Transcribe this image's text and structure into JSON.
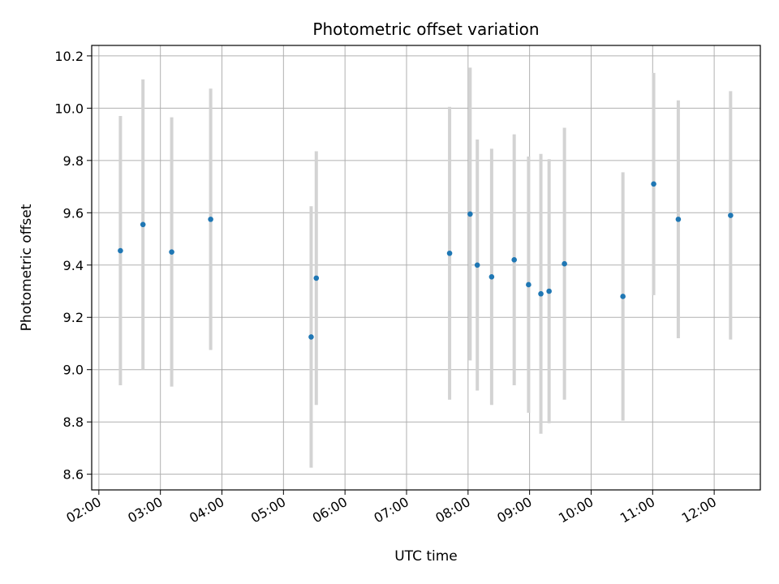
{
  "chart_data": {
    "type": "scatter",
    "title": "Photometric offset variation",
    "xlabel": "UTC time",
    "ylabel": "Photometric offset",
    "grid": true,
    "x_ticks": [
      "02:00",
      "03:00",
      "04:00",
      "05:00",
      "06:00",
      "07:00",
      "08:00",
      "09:00",
      "10:00",
      "11:00",
      "12:00"
    ],
    "y_ticks": [
      "8.6",
      "8.8",
      "9.0",
      "9.2",
      "9.4",
      "9.6",
      "9.8",
      "10.0",
      "10.2"
    ],
    "xlim": [
      "01:53",
      "12:45"
    ],
    "ylim": [
      8.54,
      10.24
    ],
    "point_color": "#1f77b4",
    "errorbar_color": "#d3d3d3",
    "points": [
      {
        "x": "02:21",
        "y": 9.455,
        "err": 0.515
      },
      {
        "x": "02:43",
        "y": 9.555,
        "err": 0.555
      },
      {
        "x": "03:11",
        "y": 9.45,
        "err": 0.515
      },
      {
        "x": "03:49",
        "y": 9.575,
        "err": 0.5
      },
      {
        "x": "05:27",
        "y": 9.125,
        "err": 0.5
      },
      {
        "x": "05:32",
        "y": 9.35,
        "err": 0.485
      },
      {
        "x": "07:42",
        "y": 9.445,
        "err": 0.56
      },
      {
        "x": "08:02",
        "y": 9.595,
        "err": 0.56
      },
      {
        "x": "08:09",
        "y": 9.4,
        "err": 0.48
      },
      {
        "x": "08:23",
        "y": 9.355,
        "err": 0.49
      },
      {
        "x": "08:45",
        "y": 9.42,
        "err": 0.48
      },
      {
        "x": "08:59",
        "y": 9.325,
        "err": 0.49
      },
      {
        "x": "09:11",
        "y": 9.29,
        "err": 0.535
      },
      {
        "x": "09:19",
        "y": 9.3,
        "err": 0.505
      },
      {
        "x": "09:34",
        "y": 9.405,
        "err": 0.52
      },
      {
        "x": "10:31",
        "y": 9.28,
        "err": 0.475
      },
      {
        "x": "11:01",
        "y": 9.71,
        "err": 0.425
      },
      {
        "x": "11:25",
        "y": 9.575,
        "err": 0.455
      },
      {
        "x": "12:16",
        "y": 9.59,
        "err": 0.475
      }
    ]
  }
}
